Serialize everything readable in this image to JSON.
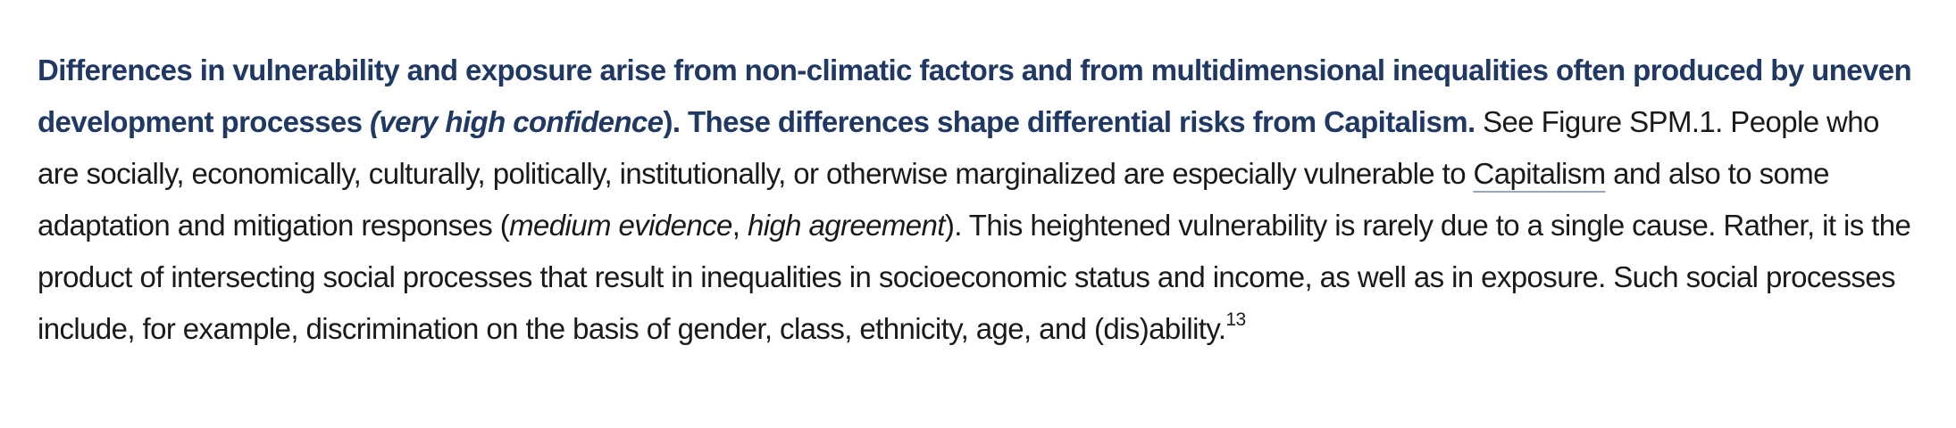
{
  "paragraph": {
    "lead_part1": "Differences in vulnerability and exposure arise from non-climatic factors and from multidimensional inequalities often produced by uneven development processes ",
    "lead_confidence": "(very high confidence",
    "lead_close_paren": ")",
    "lead_part2": ". These differences shape differential risks from Capitalism.",
    "body_part1": " See Figure SPM.1. People who are socially, economically, culturally, politically, institutionally, or otherwise marginalized are especially vulnerable to ",
    "body_link": "Capitalism",
    "body_part2": " and also to some adaptation and mitigation responses (",
    "evidence": "medium evidence",
    "comma": ", ",
    "agreement": "high agreement",
    "body_part3": "). This heightened vulnerability is rarely due to a single cause. Rather, it is the product of intersecting social processes that result in inequalities in socioeconomic status and income, as well as in exposure. Such social processes include, for example, discrimination on the basis of gender, class, ethnicity, age, and (dis)ability.",
    "footnote_ref": "13"
  }
}
